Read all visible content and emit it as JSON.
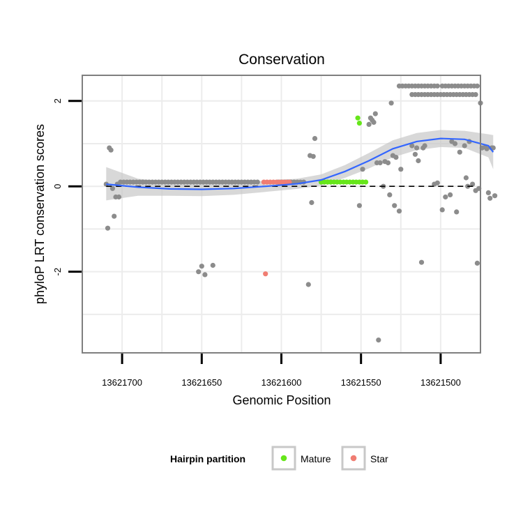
{
  "chart_data": {
    "type": "scatter",
    "title": "Conservation",
    "xlabel": "Genomic Position",
    "ylabel": "phyloP LRT conservation scores",
    "x_reversed": true,
    "xlim": [
      13621725,
      13621475
    ],
    "ylim": [
      -3.9,
      2.6
    ],
    "x_ticks": [
      13621700,
      13621650,
      13621600,
      13621550,
      13621500
    ],
    "x_tick_labels": [
      "13621700",
      "13621650",
      "13621600",
      "13621550",
      "13621500"
    ],
    "y_ticks": [
      2,
      0,
      -2
    ],
    "y_tick_labels": [
      "2",
      "0",
      "-2"
    ],
    "reference_line": {
      "y": 0.0,
      "style": "dashed"
    },
    "legend": {
      "title": "Hairpin partition",
      "entries": [
        {
          "label": "Mature",
          "color": "#66e61a"
        },
        {
          "label": "Star",
          "color": "#f07d72"
        }
      ]
    },
    "colors": {
      "other": "#8c8c8c",
      "smooth": "#3366ff",
      "band": "#c8c8c8",
      "panel": "#ffffff",
      "grid": "#ececec",
      "border": "#7f7f7f"
    },
    "series": [
      {
        "name": "Other",
        "points": [
          [
            13621710,
            0.05
          ],
          [
            13621709,
            -0.98
          ],
          [
            13621708,
            0.9
          ],
          [
            13621707,
            0.85
          ],
          [
            13621706,
            -0.05
          ],
          [
            13621705,
            -0.7
          ],
          [
            13621704,
            -0.25
          ],
          [
            13621703,
            0.05
          ],
          [
            13621702,
            -0.25
          ],
          [
            13621701,
            0.1
          ],
          [
            13621699,
            0.1
          ],
          [
            13621697,
            0.1
          ],
          [
            13621695,
            0.1
          ],
          [
            13621693,
            0.1
          ],
          [
            13621691,
            0.1
          ],
          [
            13621689,
            0.1
          ],
          [
            13621687,
            0.1
          ],
          [
            13621685,
            0.1
          ],
          [
            13621683,
            0.1
          ],
          [
            13621681,
            0.1
          ],
          [
            13621679,
            0.1
          ],
          [
            13621677,
            0.1
          ],
          [
            13621675,
            0.1
          ],
          [
            13621673,
            0.1
          ],
          [
            13621671,
            0.1
          ],
          [
            13621669,
            0.1
          ],
          [
            13621667,
            0.1
          ],
          [
            13621665,
            0.1
          ],
          [
            13621663,
            0.1
          ],
          [
            13621661,
            0.1
          ],
          [
            13621659,
            0.1
          ],
          [
            13621657,
            0.1
          ],
          [
            13621655,
            0.1
          ],
          [
            13621653,
            0.1
          ],
          [
            13621651,
            0.1
          ],
          [
            13621649,
            0.1
          ],
          [
            13621647,
            0.1
          ],
          [
            13621645,
            0.1
          ],
          [
            13621643,
            0.1
          ],
          [
            13621641,
            0.1
          ],
          [
            13621639,
            0.1
          ],
          [
            13621637,
            0.1
          ],
          [
            13621635,
            0.1
          ],
          [
            13621633,
            0.1
          ],
          [
            13621631,
            0.1
          ],
          [
            13621629,
            0.1
          ],
          [
            13621627,
            0.1
          ],
          [
            13621625,
            0.1
          ],
          [
            13621623,
            0.1
          ],
          [
            13621621,
            0.1
          ],
          [
            13621619,
            0.1
          ],
          [
            13621617,
            0.1
          ],
          [
            13621615,
            0.1
          ],
          [
            13621602,
            0.1
          ],
          [
            13621600,
            0.1
          ],
          [
            13621598,
            0.1
          ],
          [
            13621596,
            0.1
          ],
          [
            13621594,
            0.1
          ],
          [
            13621592,
            0.1
          ],
          [
            13621590,
            0.1
          ],
          [
            13621588,
            0.1
          ],
          [
            13621586,
            0.1
          ],
          [
            13621652,
            -2.0
          ],
          [
            13621650,
            -1.87
          ],
          [
            13621648,
            -2.07
          ],
          [
            13621643,
            -1.85
          ],
          [
            13621583,
            -2.3
          ],
          [
            13621582,
            0.72
          ],
          [
            13621581,
            -0.38
          ],
          [
            13621580,
            0.7
          ],
          [
            13621579,
            1.12
          ],
          [
            13621575,
            0.1
          ],
          [
            13621573,
            0.1
          ],
          [
            13621571,
            0.1
          ],
          [
            13621569,
            0.1
          ],
          [
            13621551,
            -0.45
          ],
          [
            13621549,
            0.4
          ],
          [
            13621545,
            1.45
          ],
          [
            13621544,
            1.6
          ],
          [
            13621543,
            1.55
          ],
          [
            13621542,
            1.5
          ],
          [
            13621541,
            1.7
          ],
          [
            13621540,
            0.55
          ],
          [
            13621538,
            0.55
          ],
          [
            13621536,
            0.0
          ],
          [
            13621535,
            0.58
          ],
          [
            13621533,
            0.55
          ],
          [
            13621532,
            -0.2
          ],
          [
            13621531,
            1.95
          ],
          [
            13621530,
            0.72
          ],
          [
            13621529,
            -0.45
          ],
          [
            13621528,
            0.68
          ],
          [
            13621526,
            -0.58
          ],
          [
            13621525,
            0.4
          ],
          [
            13621539,
            -3.6
          ],
          [
            13621518,
            0.95
          ],
          [
            13621516,
            0.75
          ],
          [
            13621515,
            0.9
          ],
          [
            13621514,
            0.6
          ],
          [
            13621512,
            -1.78
          ],
          [
            13621511,
            0.9
          ],
          [
            13621510,
            0.95
          ],
          [
            13621526,
            2.35
          ],
          [
            13621524,
            2.35
          ],
          [
            13621522,
            2.35
          ],
          [
            13621520,
            2.35
          ],
          [
            13621518,
            2.35
          ],
          [
            13621516,
            2.35
          ],
          [
            13621514,
            2.35
          ],
          [
            13621512,
            2.35
          ],
          [
            13621510,
            2.35
          ],
          [
            13621508,
            2.35
          ],
          [
            13621506,
            2.35
          ],
          [
            13621504,
            2.35
          ],
          [
            13621502,
            2.35
          ],
          [
            13621499,
            2.35
          ],
          [
            13621497,
            2.35
          ],
          [
            13621495,
            2.35
          ],
          [
            13621493,
            2.35
          ],
          [
            13621491,
            2.35
          ],
          [
            13621489,
            2.35
          ],
          [
            13621487,
            2.35
          ],
          [
            13621485,
            2.35
          ],
          [
            13621483,
            2.35
          ],
          [
            13621481,
            2.35
          ],
          [
            13621479,
            2.35
          ],
          [
            13621477,
            2.35
          ],
          [
            13621518,
            2.15
          ],
          [
            13621516,
            2.15
          ],
          [
            13621514,
            2.15
          ],
          [
            13621512,
            2.15
          ],
          [
            13621510,
            2.15
          ],
          [
            13621508,
            2.15
          ],
          [
            13621506,
            2.15
          ],
          [
            13621504,
            2.15
          ],
          [
            13621502,
            2.15
          ],
          [
            13621500,
            2.15
          ],
          [
            13621498,
            2.15
          ],
          [
            13621496,
            2.15
          ],
          [
            13621494,
            2.15
          ],
          [
            13621492,
            2.15
          ],
          [
            13621490,
            2.15
          ],
          [
            13621488,
            2.15
          ],
          [
            13621486,
            2.15
          ],
          [
            13621484,
            2.15
          ],
          [
            13621482,
            2.15
          ],
          [
            13621480,
            2.15
          ],
          [
            13621478,
            2.15
          ],
          [
            13621475,
            1.95
          ],
          [
            13621504,
            0.05
          ],
          [
            13621502,
            0.08
          ],
          [
            13621499,
            -0.55
          ],
          [
            13621497,
            -0.25
          ],
          [
            13621494,
            -0.2
          ],
          [
            13621493,
            1.05
          ],
          [
            13621491,
            1.0
          ],
          [
            13621490,
            -0.6
          ],
          [
            13621488,
            0.8
          ],
          [
            13621485,
            0.95
          ],
          [
            13621484,
            0.2
          ],
          [
            13621482,
            1.05
          ],
          [
            13621480,
            0.05
          ],
          [
            13621478,
            -0.1
          ],
          [
            13621477,
            -1.8
          ],
          [
            13621476,
            -0.05
          ],
          [
            13621474,
            0.9
          ],
          [
            13621472,
            0.92
          ],
          [
            13621471,
            0.88
          ],
          [
            13621470,
            -0.15
          ],
          [
            13621469,
            -0.28
          ],
          [
            13621468,
            0.9
          ],
          [
            13621467,
            0.9
          ],
          [
            13621466,
            -0.22
          ],
          [
            13621483,
            0.0
          ]
        ]
      },
      {
        "name": "Mature",
        "color": "#66e61a",
        "points": [
          [
            13621575,
            0.1
          ],
          [
            13621573,
            0.1
          ],
          [
            13621571,
            0.1
          ],
          [
            13621569,
            0.1
          ],
          [
            13621567,
            0.1
          ],
          [
            13621565,
            0.1
          ],
          [
            13621563,
            0.1
          ],
          [
            13621561,
            0.1
          ],
          [
            13621559,
            0.1
          ],
          [
            13621557,
            0.1
          ],
          [
            13621555,
            0.1
          ],
          [
            13621553,
            0.1
          ],
          [
            13621551,
            0.1
          ],
          [
            13621549,
            0.1
          ],
          [
            13621547,
            0.1
          ],
          [
            13621552,
            1.6
          ],
          [
            13621551,
            1.48
          ]
        ]
      },
      {
        "name": "Star",
        "color": "#f07d72",
        "points": [
          [
            13621611,
            0.1
          ],
          [
            13621609,
            0.1
          ],
          [
            13621607,
            0.1
          ],
          [
            13621605,
            0.1
          ],
          [
            13621603,
            0.1
          ],
          [
            13621601,
            0.1
          ],
          [
            13621599,
            0.1
          ],
          [
            13621597,
            0.1
          ],
          [
            13621595,
            0.1
          ],
          [
            13621610,
            -2.05
          ]
        ]
      }
    ],
    "smooth": {
      "method": "loess",
      "fit": [
        [
          13621710,
          0.05
        ],
        [
          13621690,
          -0.02
        ],
        [
          13621670,
          -0.06
        ],
        [
          13621650,
          -0.07
        ],
        [
          13621630,
          -0.05
        ],
        [
          13621610,
          0.0
        ],
        [
          13621590,
          0.06
        ],
        [
          13621575,
          0.15
        ],
        [
          13621560,
          0.35
        ],
        [
          13621545,
          0.6
        ],
        [
          13621530,
          0.88
        ],
        [
          13621515,
          1.05
        ],
        [
          13621500,
          1.12
        ],
        [
          13621485,
          1.1
        ],
        [
          13621470,
          0.95
        ],
        [
          13621467,
          0.8
        ]
      ],
      "upper": [
        [
          13621710,
          0.45
        ],
        [
          13621690,
          0.18
        ],
        [
          13621670,
          0.1
        ],
        [
          13621650,
          0.09
        ],
        [
          13621630,
          0.1
        ],
        [
          13621610,
          0.13
        ],
        [
          13621590,
          0.18
        ],
        [
          13621575,
          0.28
        ],
        [
          13621560,
          0.5
        ],
        [
          13621545,
          0.78
        ],
        [
          13621530,
          1.08
        ],
        [
          13621515,
          1.25
        ],
        [
          13621500,
          1.32
        ],
        [
          13621485,
          1.3
        ],
        [
          13621470,
          1.22
        ],
        [
          13621467,
          1.2
        ]
      ],
      "lower": [
        [
          13621710,
          -0.33
        ],
        [
          13621690,
          -0.22
        ],
        [
          13621670,
          -0.22
        ],
        [
          13621650,
          -0.23
        ],
        [
          13621630,
          -0.2
        ],
        [
          13621610,
          -0.13
        ],
        [
          13621590,
          -0.06
        ],
        [
          13621575,
          0.02
        ],
        [
          13621560,
          0.2
        ],
        [
          13621545,
          0.42
        ],
        [
          13621530,
          0.68
        ],
        [
          13621515,
          0.85
        ],
        [
          13621500,
          0.92
        ],
        [
          13621485,
          0.9
        ],
        [
          13621470,
          0.68
        ],
        [
          13621467,
          0.4
        ]
      ]
    }
  }
}
